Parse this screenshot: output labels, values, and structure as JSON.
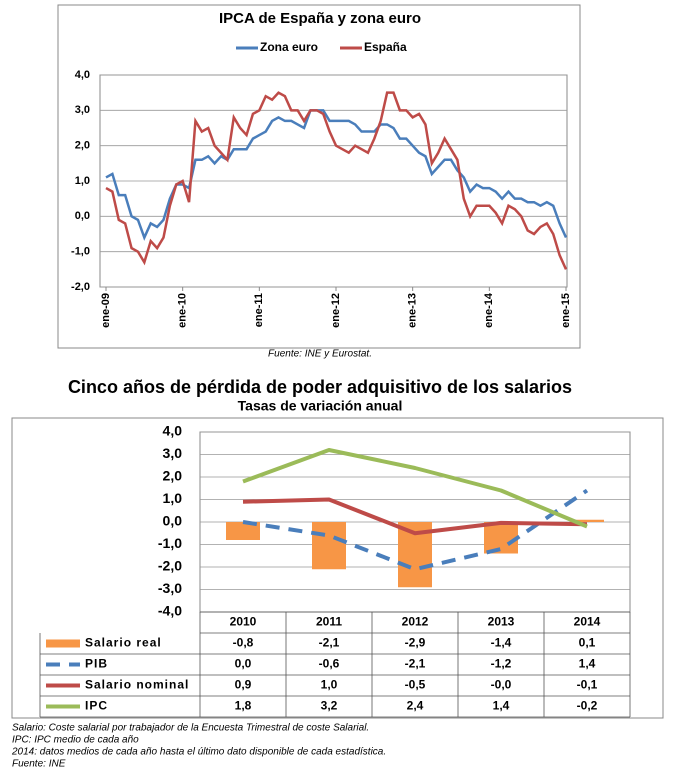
{
  "chart_data": [
    {
      "type": "line",
      "title": "IPCA de España y zona euro",
      "source": "Fuente: INE y Eurostat.",
      "categories": [
        "ene-09",
        null,
        null,
        null,
        null,
        null,
        null,
        null,
        null,
        null,
        null,
        null,
        "ene-10",
        null,
        null,
        null,
        null,
        null,
        null,
        null,
        null,
        null,
        null,
        null,
        "ene-11",
        null,
        null,
        null,
        null,
        null,
        null,
        null,
        null,
        null,
        null,
        null,
        "ene-12",
        null,
        null,
        null,
        null,
        null,
        null,
        null,
        null,
        null,
        null,
        null,
        "ene-13",
        null,
        null,
        null,
        null,
        null,
        null,
        null,
        null,
        null,
        null,
        null,
        "ene-14",
        null,
        null,
        null,
        null,
        null,
        null,
        null,
        null,
        null,
        null,
        null,
        "ene-15"
      ],
      "series": [
        {
          "name": "Zona euro",
          "color": "#4a7ebb",
          "values": [
            1.1,
            1.2,
            0.6,
            0.6,
            0.0,
            -0.1,
            -0.6,
            -0.2,
            -0.3,
            -0.1,
            0.5,
            0.9,
            0.9,
            0.8,
            1.6,
            1.6,
            1.7,
            1.5,
            1.7,
            1.6,
            1.9,
            1.9,
            1.9,
            2.2,
            2.3,
            2.4,
            2.7,
            2.8,
            2.7,
            2.7,
            2.6,
            2.5,
            3.0,
            3.0,
            3.0,
            2.7,
            2.7,
            2.7,
            2.7,
            2.6,
            2.4,
            2.4,
            2.4,
            2.6,
            2.6,
            2.5,
            2.2,
            2.2,
            2.0,
            1.8,
            1.7,
            1.2,
            1.4,
            1.6,
            1.6,
            1.3,
            1.1,
            0.7,
            0.9,
            0.8,
            0.8,
            0.7,
            0.5,
            0.7,
            0.5,
            0.5,
            0.4,
            0.4,
            0.3,
            0.4,
            0.3,
            -0.2,
            -0.6
          ]
        },
        {
          "name": "España",
          "color": "#be4b48",
          "values": [
            0.8,
            0.7,
            -0.1,
            -0.2,
            -0.9,
            -1.0,
            -1.3,
            -0.7,
            -0.9,
            -0.6,
            0.3,
            0.9,
            1.0,
            0.4,
            2.7,
            2.4,
            2.5,
            2.0,
            1.8,
            1.6,
            2.8,
            2.5,
            2.3,
            2.9,
            3.0,
            3.4,
            3.3,
            3.5,
            3.4,
            3.0,
            3.0,
            2.7,
            3.0,
            3.0,
            2.9,
            2.4,
            2.0,
            1.9,
            1.8,
            2.0,
            1.9,
            1.8,
            2.2,
            2.7,
            3.5,
            3.5,
            3.0,
            3.0,
            2.8,
            2.9,
            2.6,
            1.5,
            1.8,
            2.2,
            1.9,
            1.6,
            0.5,
            0.0,
            0.3,
            0.3,
            0.3,
            0.1,
            -0.2,
            0.3,
            0.2,
            0.0,
            -0.4,
            -0.5,
            -0.3,
            -0.2,
            -0.5,
            -1.1,
            -1.5
          ]
        }
      ],
      "ylim": [
        -2,
        4
      ],
      "yticks": [
        {
          "value": -2,
          "label": "-2,0"
        },
        {
          "value": -1,
          "label": "-1,0"
        },
        {
          "value": 0,
          "label": "0,0"
        },
        {
          "value": 1,
          "label": "1,0"
        },
        {
          "value": 2,
          "label": "2,0"
        },
        {
          "value": 3,
          "label": "3,0"
        },
        {
          "value": 4,
          "label": "4,0"
        }
      ],
      "grid": true,
      "legend": "top"
    },
    {
      "type": "bar",
      "title": "Cinco años de pérdida de poder adquisitivo de los salarios",
      "subtitle": "Tasas de variación anual",
      "categories": [
        "2010",
        "2011",
        "2012",
        "2013",
        "2014"
      ],
      "series": [
        {
          "name": "Salario real",
          "type": "bar",
          "color": "#f79646",
          "values": [
            -0.8,
            -2.1,
            -2.9,
            -1.4,
            0.1
          ],
          "value_labels": [
            "-0,8",
            "-2,1",
            "-2,9",
            "-1,4",
            "0,1"
          ]
        },
        {
          "name": "PIB",
          "type": "line",
          "dashed": true,
          "color": "#4a7ebb",
          "values": [
            0.0,
            -0.6,
            -2.1,
            -1.2,
            1.4
          ],
          "value_labels": [
            "0,0",
            "-0,6",
            "-2,1",
            "-1,2",
            "1,4"
          ]
        },
        {
          "name": "Salario nominal",
          "type": "line",
          "color": "#be4b48",
          "values": [
            0.9,
            1.0,
            -0.5,
            -0.04,
            -0.1
          ],
          "value_labels": [
            "0,9",
            "1,0",
            "-0,5",
            "-0,0",
            "-0,1"
          ]
        },
        {
          "name": "IPC",
          "type": "line",
          "color": "#9bbb59",
          "values": [
            1.8,
            3.2,
            2.4,
            1.4,
            -0.2
          ],
          "value_labels": [
            "1,8",
            "3,2",
            "2,4",
            "1,4",
            "-0,2"
          ]
        }
      ],
      "ylim": [
        -4,
        4
      ],
      "yticks": [
        {
          "value": -4,
          "label": "-4,0"
        },
        {
          "value": -3,
          "label": "-3,0"
        },
        {
          "value": -2,
          "label": "-2,0"
        },
        {
          "value": -1,
          "label": "-1,0"
        },
        {
          "value": 0,
          "label": "0,0"
        },
        {
          "value": 1,
          "label": "1,0"
        },
        {
          "value": 2,
          "label": "2,0"
        },
        {
          "value": 3,
          "label": "3,0"
        },
        {
          "value": 4,
          "label": "4,0"
        }
      ],
      "grid": true,
      "legend": "table",
      "notes": [
        "Salario: Coste salarial por trabajador de la Encuesta Trimestral de coste Salarial.",
        "IPC: IPC medio de cada año",
        "2014: datos medios de cada año hasta el último dato disponible de cada estadística.",
        "Fuente: INE"
      ]
    }
  ]
}
